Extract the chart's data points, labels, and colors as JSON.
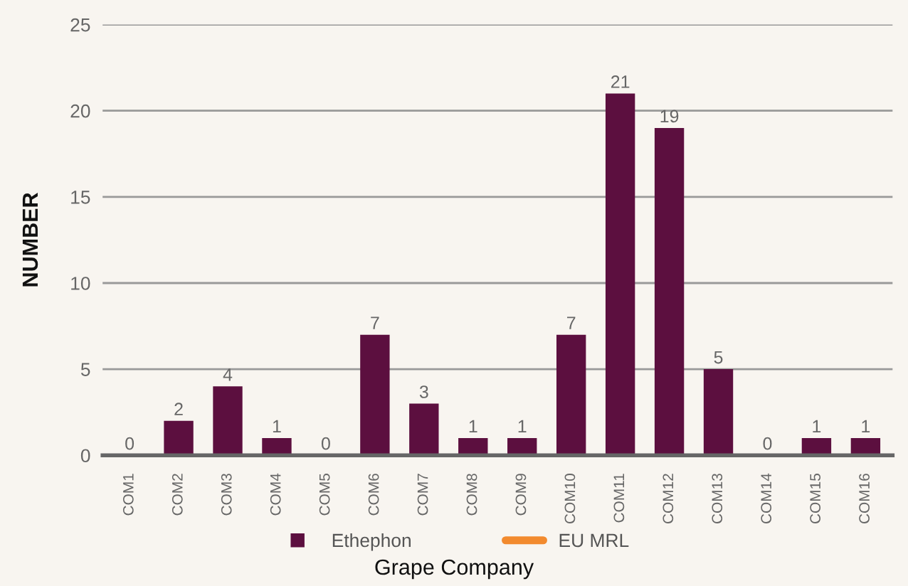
{
  "chart_data": {
    "type": "bar",
    "xlabel": "Grape Company",
    "ylabel": "NUMBER",
    "categories": [
      "COM1",
      "COM2",
      "COM3",
      "COM4",
      "COM5",
      "COM6",
      "COM7",
      "COM8",
      "COM9",
      "COM10",
      "COM11",
      "COM12",
      "COM13",
      "COM14",
      "COM15",
      "COM16"
    ],
    "series": [
      {
        "name": "Ethephon",
        "color": "#5c0f3f",
        "values": [
          0,
          2,
          4,
          1,
          0,
          7,
          3,
          1,
          1,
          7,
          21,
          19,
          5,
          0,
          1,
          1
        ]
      },
      {
        "name": "EU MRL",
        "type": "line",
        "color": "#f28a2e",
        "values": [
          null,
          null,
          null,
          null,
          null,
          null,
          null,
          null,
          null,
          null,
          null,
          null,
          null,
          null,
          null,
          null
        ]
      }
    ],
    "ylim": [
      0,
      25
    ],
    "yticks": [
      0,
      5,
      10,
      15,
      20,
      25
    ],
    "grid": "y",
    "legend": "bottom",
    "data_labels": true
  }
}
